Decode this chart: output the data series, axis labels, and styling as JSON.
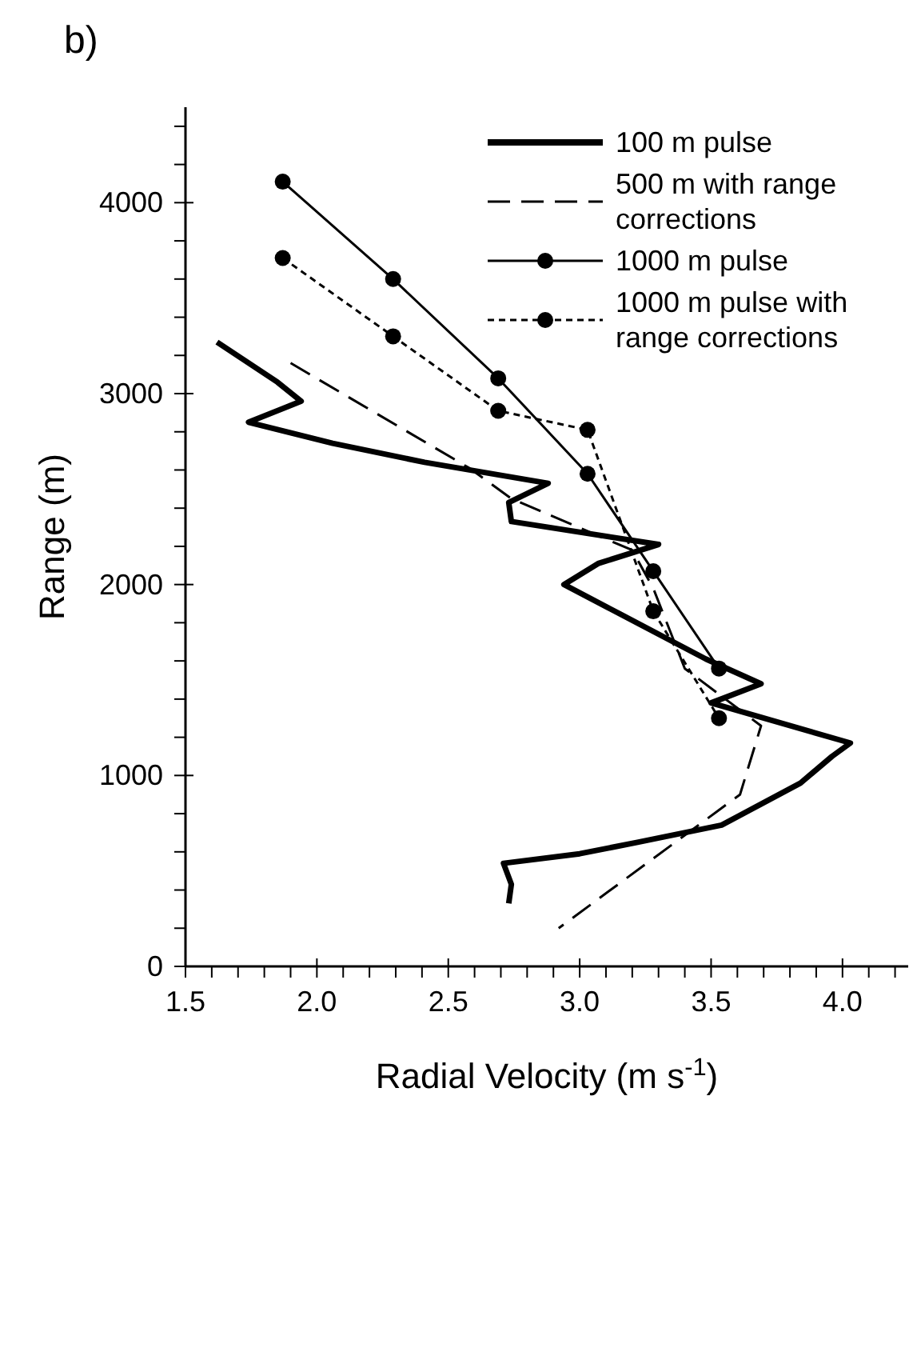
{
  "chart_data": {
    "type": "line",
    "title": "b)",
    "xlabel": "Radial Velocity (m s$^{-1}$)",
    "ylabel": "Range  (m)",
    "xlim": [
      1.5,
      4.25
    ],
    "ylim": [
      0,
      4500
    ],
    "xticks": [
      1.5,
      {
        "value": 1.6,
        "label": null
      },
      {
        "value": 1.7,
        "label": null
      },
      {
        "value": 1.8,
        "label": null
      },
      {
        "value": 1.9,
        "label": null
      },
      "2.0",
      {
        "value": 2.1,
        "label": null
      },
      {
        "value": 2.2,
        "label": null
      },
      {
        "value": 2.3,
        "label": null
      },
      {
        "value": 2.4,
        "label": null
      },
      2.5,
      {
        "value": 2.6,
        "label": null
      },
      {
        "value": 2.7,
        "label": null
      },
      {
        "value": 2.8,
        "label": null
      },
      {
        "value": 2.9,
        "label": null
      },
      {
        "value": 3.0,
        "label": "3.0"
      },
      {
        "value": 3.1,
        "label": null
      },
      {
        "value": 3.2,
        "label": null
      },
      {
        "value": 3.3,
        "label": null
      },
      {
        "value": 3.4,
        "label": null
      },
      3.5,
      {
        "value": 3.6,
        "label": null
      },
      {
        "value": 3.7,
        "label": null
      },
      {
        "value": 3.8,
        "label": null
      },
      {
        "value": 3.9,
        "label": null
      },
      {
        "value": 4.0,
        "label": "4.0"
      },
      {
        "value": 4.1,
        "label": null
      },
      {
        "value": 4.2,
        "label": null
      }
    ],
    "yticks": [
      0,
      {
        "value": 200,
        "label": null
      },
      {
        "value": 400,
        "label": null
      },
      {
        "value": 600,
        "label": null
      },
      {
        "value": 800,
        "label": null
      },
      1000,
      {
        "value": 1200,
        "label": null
      },
      {
        "value": 1400,
        "label": null
      },
      {
        "value": 1600,
        "label": null
      },
      {
        "value": 1800,
        "label": null
      },
      2000,
      {
        "value": 2200,
        "label": null
      },
      {
        "value": 2400,
        "label": null
      },
      {
        "value": 2600,
        "label": null
      },
      {
        "value": 2800,
        "label": null
      },
      3000,
      {
        "value": 3200,
        "label": null
      },
      {
        "value": 3400,
        "label": null
      },
      {
        "value": 3600,
        "label": null
      },
      {
        "value": 3800,
        "label": null
      },
      4000,
      {
        "value": 4200,
        "label": null
      },
      {
        "value": 4400,
        "label": null
      }
    ],
    "grid": false,
    "legend": "top right",
    "series": [
      {
        "name": "100 m pulse",
        "color": "#000000",
        "line_style": "solid",
        "marker": "none",
        "x": [
          1.62,
          1.85,
          1.94,
          1.74,
          2.06,
          2.41,
          2.88,
          2.73,
          2.74,
          3.3,
          3.07,
          2.94,
          3.48,
          3.69,
          3.5,
          4.03,
          3.96,
          3.84,
          3.69,
          3.54,
          3.22,
          3.0,
          2.71,
          2.74,
          2.73
        ],
        "values": [
          3270,
          3060,
          2960,
          2850,
          2740,
          2640,
          2530,
          2430,
          2330,
          2210,
          2110,
          2000,
          1610,
          1480,
          1380,
          1170,
          1100,
          960,
          850,
          740,
          650,
          590,
          540,
          430,
          330
        ]
      },
      {
        "name": "500 m with range corrections",
        "color": "#000000",
        "line_style": "dashed",
        "marker": "none",
        "x": [
          1.9,
          2.58,
          2.74,
          3.2,
          3.28,
          3.4,
          3.69,
          3.61,
          2.92
        ],
        "values": [
          3160,
          2610,
          2450,
          2180,
          1980,
          1560,
          1260,
          900,
          200
        ]
      },
      {
        "name": "1000 m pulse",
        "color": "#000000",
        "line_style": "solid",
        "marker": "circle",
        "x": [
          1.87,
          2.29,
          2.69,
          3.03,
          3.28,
          3.53
        ],
        "values": [
          4110,
          3600,
          3080,
          2580,
          2070,
          1560
        ]
      },
      {
        "name": "1000 m pulse with range corrections",
        "color": "#000000",
        "line_style": "dotted",
        "marker": "circle",
        "x": [
          1.87,
          2.29,
          2.69,
          3.03,
          3.28,
          3.53
        ],
        "values": [
          3710,
          3300,
          2910,
          2810,
          1860,
          1300
        ]
      }
    ]
  }
}
